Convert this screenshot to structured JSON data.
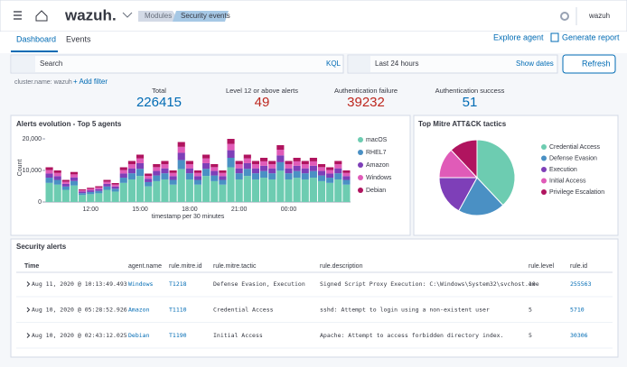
{
  "header": {
    "brand": "wazuh.",
    "breadcrumbs": [
      "Modules",
      "Security events"
    ],
    "user": "wazuh"
  },
  "tabs": [
    "Dashboard",
    "Events"
  ],
  "actions": [
    "Explore agent",
    "Generate report"
  ],
  "search": {
    "placeholder": "Search",
    "language": "KQL",
    "time_range": "Last 24 hours",
    "show_dates": "Show dates",
    "refresh": "Refresh"
  },
  "filters": {
    "pill": "cluster.name: wazuh",
    "add": "+ Add filter"
  },
  "stats": [
    {
      "label": "Total",
      "value": 226415,
      "color": "#006bb4"
    },
    {
      "label": "Level 12 or above alerts",
      "value": 49,
      "color": "#bd271e"
    },
    {
      "label": "Authentication failure",
      "value": 39232,
      "color": "#bd271e"
    },
    {
      "label": "Authentication success",
      "value": 51,
      "color": "#006bb4"
    }
  ],
  "alerts_chart": {
    "type": "bar",
    "stacked": true,
    "title": "Alerts evolution - Top 5 agents",
    "x_label": "timestamp per 30 minutes",
    "y_label": "Count",
    "categories": [
      null,
      null,
      null,
      null,
      null,
      "12:00",
      null,
      null,
      null,
      null,
      null,
      "15:00",
      null,
      null,
      null,
      null,
      null,
      "18:00",
      null,
      null,
      null,
      null,
      null,
      "21:00",
      null,
      null,
      null,
      null,
      null,
      "00:00",
      null,
      null,
      null,
      null,
      null,
      null,
      null
    ],
    "series": [
      {
        "name": "macOS",
        "color": "#6dccb1",
        "values": [
          6050,
          5500,
          3850,
          5230,
          2200,
          2480,
          2750,
          3850,
          3300,
          6050,
          7150,
          8250,
          4950,
          6600,
          7150,
          5500,
          10450,
          7150,
          5500,
          8250,
          6600,
          5500,
          11000,
          7150,
          8250,
          7150,
          7700,
          7150,
          9900,
          7150,
          7700,
          7150,
          7700,
          6600,
          6050,
          7150,
          5500
        ]
      },
      {
        "name": "RHEL7",
        "color": "#4a90c4",
        "values": [
          1650,
          1500,
          1050,
          1430,
          600,
          680,
          750,
          1050,
          900,
          1650,
          1950,
          2250,
          1350,
          1800,
          1950,
          1500,
          2850,
          1950,
          1500,
          2250,
          1800,
          1500,
          3000,
          1950,
          2250,
          1950,
          2100,
          1950,
          2700,
          1950,
          2100,
          1950,
          2100,
          1800,
          1650,
          1950,
          1500
        ]
      },
      {
        "name": "Amazon",
        "color": "#7e3fb8",
        "values": [
          1320,
          1200,
          840,
          1140,
          480,
          540,
          600,
          840,
          720,
          1320,
          1560,
          1800,
          1080,
          1440,
          1560,
          1200,
          2280,
          1560,
          1200,
          1800,
          1440,
          1200,
          2400,
          1560,
          1800,
          1560,
          1680,
          1560,
          2160,
          1560,
          1680,
          1560,
          1680,
          1440,
          1320,
          1560,
          1200
        ]
      },
      {
        "name": "Windows",
        "color": "#e05bb8",
        "values": [
          1100,
          1000,
          700,
          950,
          400,
          450,
          500,
          700,
          600,
          1100,
          1300,
          1500,
          900,
          1200,
          1300,
          1000,
          1900,
          1300,
          1000,
          1500,
          1200,
          1000,
          2000,
          1300,
          1500,
          1300,
          1400,
          1300,
          1800,
          1300,
          1400,
          1300,
          1400,
          1200,
          1100,
          1300,
          1000
        ]
      },
      {
        "name": "Debian",
        "color": "#b0145f",
        "values": [
          880,
          800,
          560,
          760,
          320,
          360,
          400,
          560,
          480,
          880,
          1040,
          1200,
          720,
          960,
          1040,
          800,
          1520,
          1040,
          800,
          1200,
          960,
          800,
          1600,
          1040,
          1200,
          1040,
          1120,
          1040,
          1440,
          1040,
          1120,
          1040,
          1120,
          960,
          880,
          1040,
          800
        ]
      }
    ],
    "ylim": [
      0,
      22000
    ],
    "yticks": [
      0,
      {
        "value": 10000,
        "label": "10,000"
      },
      {
        "value": 20000,
        "label": "20,000"
      }
    ]
  },
  "tactics_chart": {
    "type": "pie",
    "title": "Top Mitre ATT&CK tactics",
    "categories": [
      "Credential Access",
      "Defense Evasion",
      "Execution",
      "Initial Access",
      "Privilege Escalation"
    ],
    "values": [
      38,
      20,
      17,
      13,
      12
    ],
    "colors": [
      "#6dccb1",
      "#4a90c4",
      "#7e3fb8",
      "#e05bb8",
      "#b0145f"
    ]
  },
  "alerts_table": {
    "title": "Security alerts",
    "columns": [
      "Time",
      "agent.name",
      "rule.mitre.id",
      "rule.mitre.tactic",
      "rule.description",
      "rule.level",
      "rule.id"
    ],
    "rows": [
      [
        "Aug 11, 2020 @ 10:13:49.493",
        "Windows",
        "T1218",
        "Defense Evasion, Execution",
        "Signed Script Proxy Execution: C:\\Windows\\System32\\svchost.exe",
        "10",
        "255563"
      ],
      [
        "Aug 10, 2020 @ 05:28:52.926",
        "Amazon",
        "T1110",
        "Credential Access",
        "sshd: Attempt to login using a non-existent user",
        "5",
        "5710"
      ],
      [
        "Aug 10, 2020 @ 02:43:12.025",
        "Debian",
        "T1190",
        "Initial Access",
        "Apache: Attempt to access forbidden directory index.",
        "5",
        "30306"
      ]
    ]
  }
}
